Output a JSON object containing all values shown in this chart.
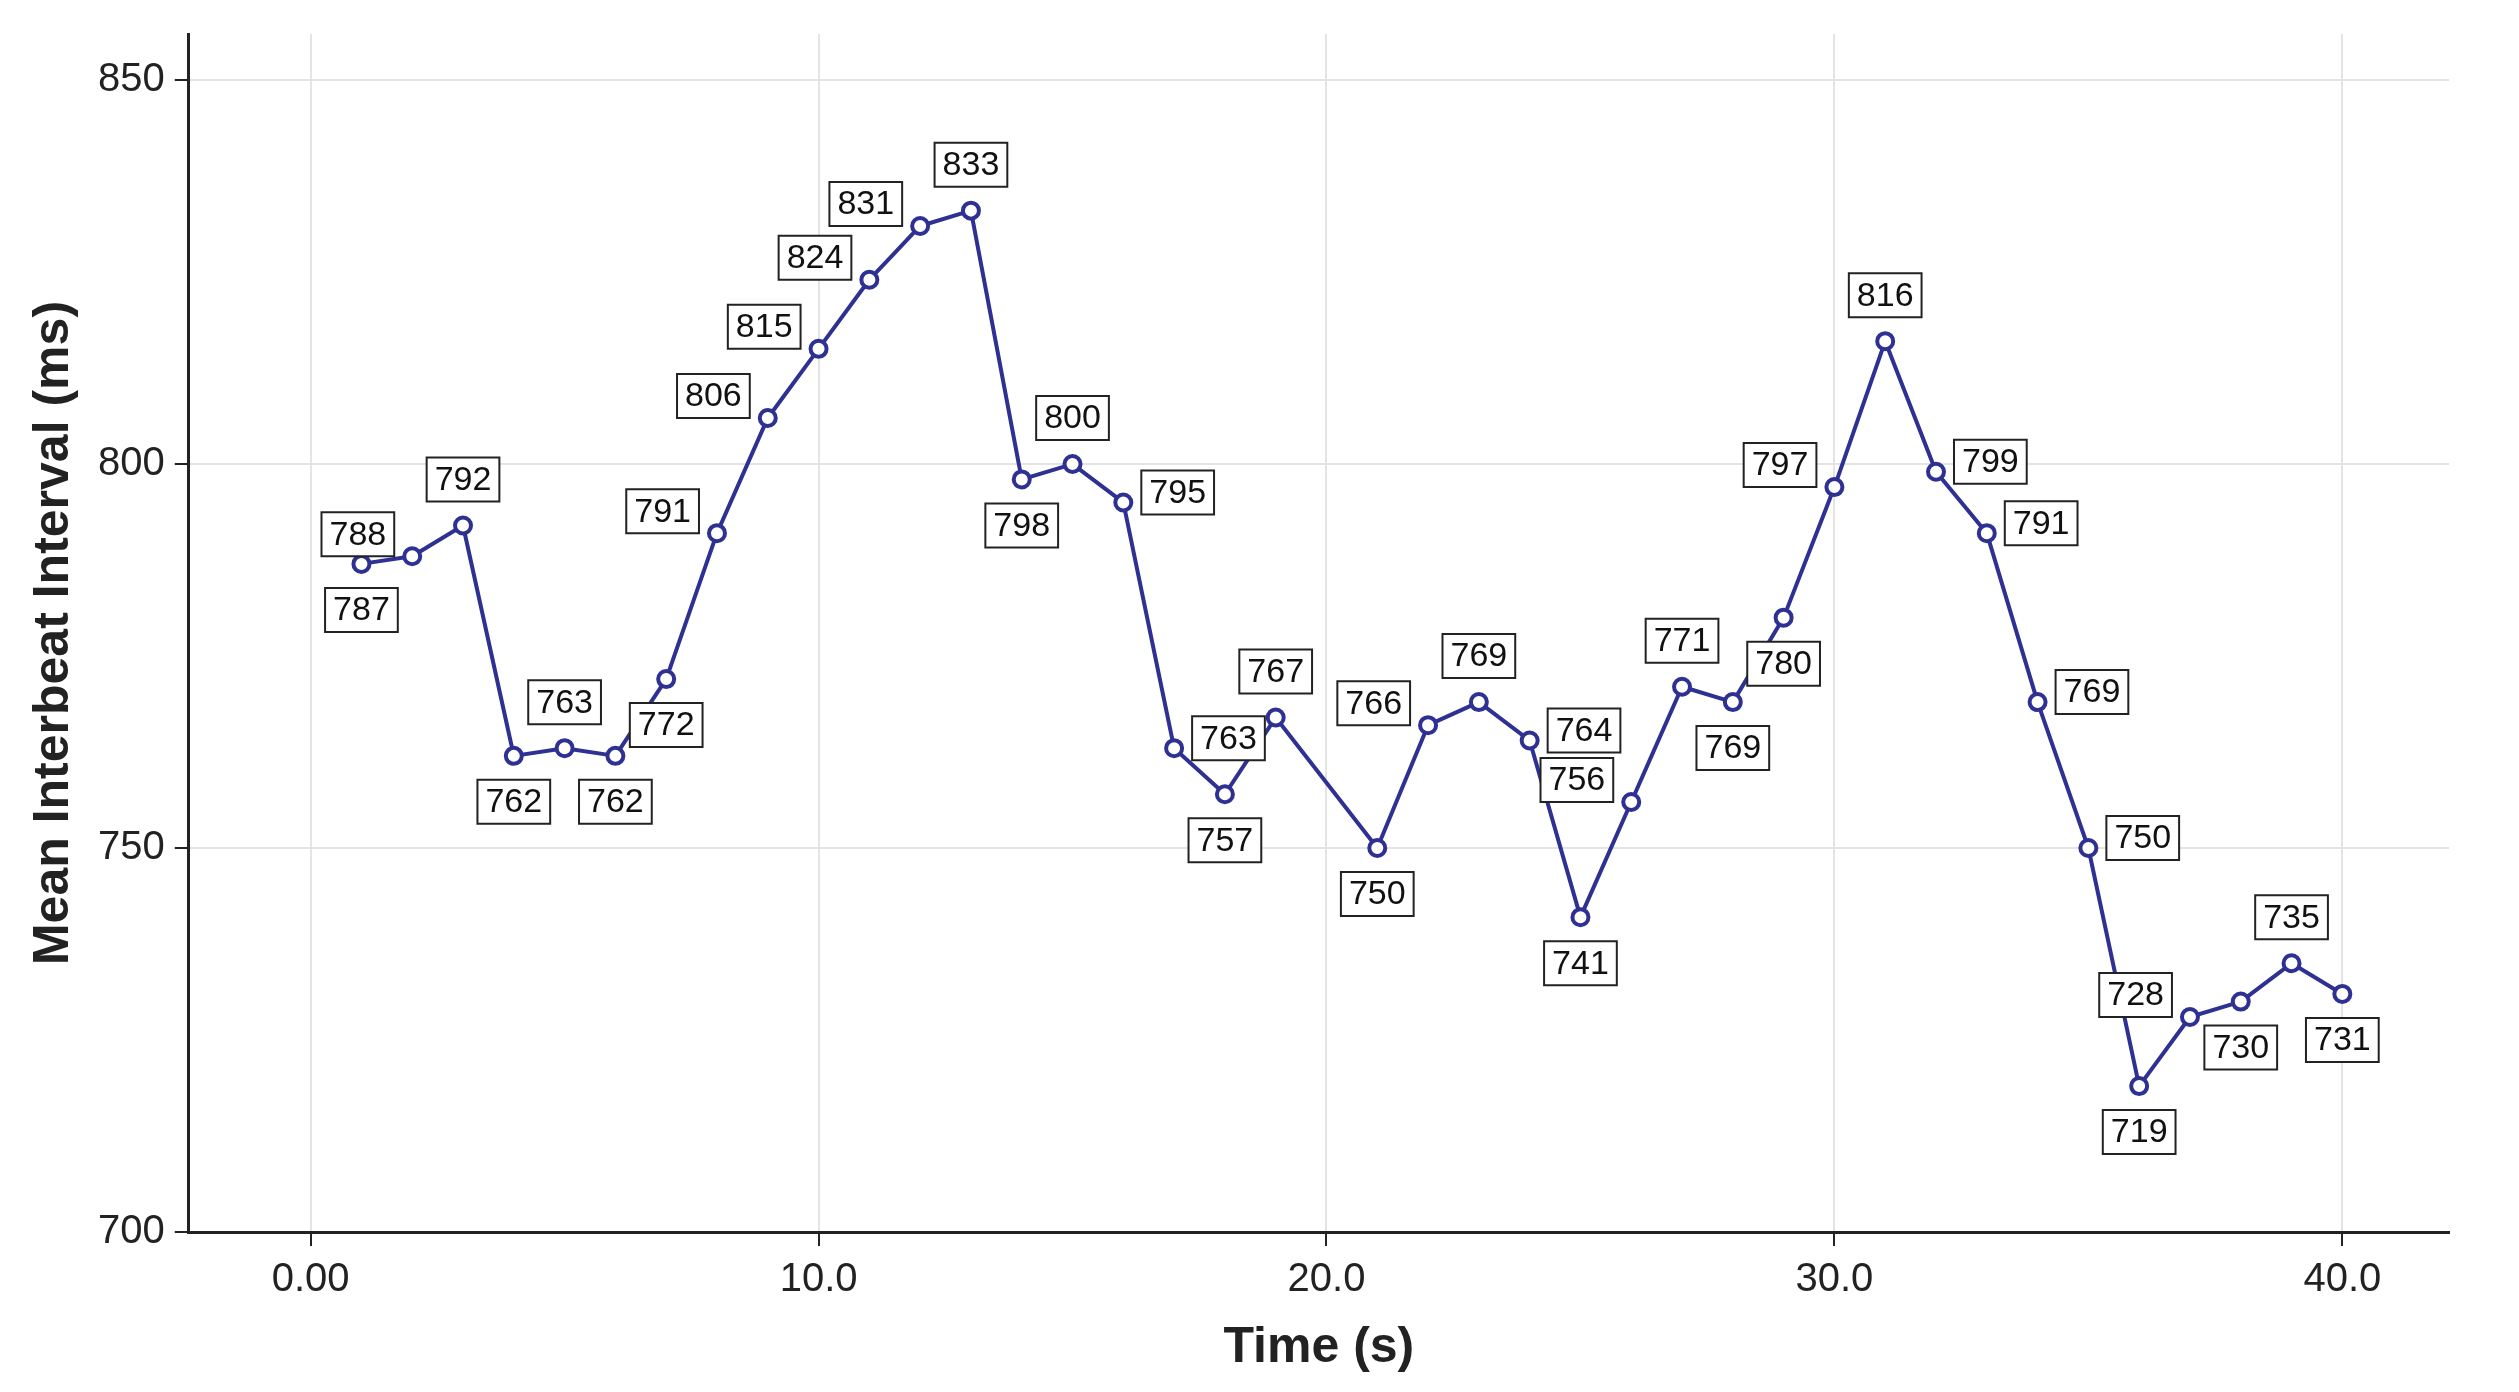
{
  "chart_data": {
    "type": "line",
    "xlabel": "Time (s)",
    "ylabel": "Mean Interbeat Interval (ms)",
    "x": [
      1,
      2,
      3,
      4,
      5,
      6,
      7,
      8,
      9,
      10,
      11,
      12,
      13,
      14,
      15,
      16,
      17,
      18,
      19,
      21,
      22,
      23,
      24,
      25,
      26,
      27,
      28,
      29,
      30,
      31,
      32,
      33,
      34,
      35,
      36,
      37,
      38,
      39,
      40
    ],
    "series": [
      {
        "color": "#2e3192",
        "values": [
          787,
          788,
          792,
          762,
          763,
          762,
          772,
          791,
          806,
          815,
          824,
          831,
          833,
          798,
          800,
          795,
          763,
          757,
          767,
          750,
          766,
          769,
          764,
          741,
          756,
          771,
          769,
          780,
          797,
          816,
          799,
          791,
          769,
          750,
          719,
          728,
          730,
          735,
          731
        ]
      }
    ],
    "xlim": [
      -2.4,
      42.1
    ],
    "ylim": [
      700,
      856
    ],
    "xticks": [
      {
        "value": 0,
        "label": "0.00"
      },
      {
        "value": 10,
        "label": "10.0"
      },
      {
        "value": 20,
        "label": "20.0"
      },
      {
        "value": 30,
        "label": "30.0"
      },
      {
        "value": 40,
        "label": "40.0"
      }
    ],
    "yticks": [
      700,
      750,
      800,
      850
    ],
    "grid": true,
    "marker": "circle",
    "line_style": "solid",
    "data_labels": true
  }
}
